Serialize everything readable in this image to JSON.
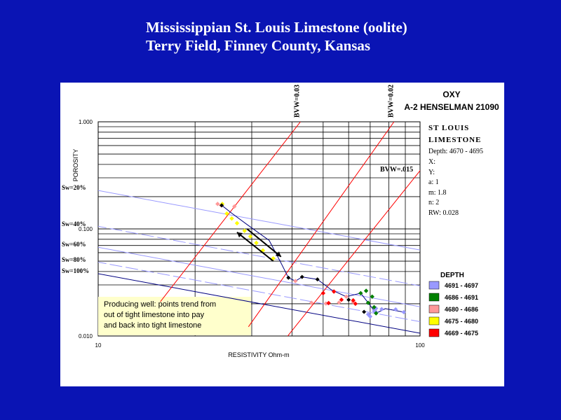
{
  "title": {
    "line1": "Mississippian St. Louis Limestone (oolite)",
    "line2": "Terry Field, Finney County, Kansas"
  },
  "well": {
    "operator": "OXY",
    "name": "A-2 HENSELMAN 21090",
    "formation_line1": "ST LOUIS",
    "formation_line2": "LIMESTONE",
    "depth": "Depth: 4670 - 4695",
    "x": "X:",
    "y": "Y:",
    "a": "a: 1",
    "m": "m: 1.8",
    "n": "n: 2",
    "rw": "RW: 0.028"
  },
  "note": {
    "line1": "Producing well: points trend from",
    "line2": "out of tight limestone into pay",
    "line3": "and back into tight limestone"
  },
  "colors": {
    "background": "#0a14b4",
    "panel": "#ffffff",
    "bvw_lines": "#ff0000",
    "sw_lines": "#9999ff",
    "sw100_line": "#000080",
    "trend_line": "#000080",
    "note_box": "#ffffcc"
  },
  "chart_data": {
    "type": "scatter",
    "x_scale": "log",
    "y_scale": "log",
    "xlim": [
      10,
      100
    ],
    "ylim": [
      0.01,
      1
    ],
    "xlabel": "RESISTIVITY Ohm-m",
    "ylabel": "POROSITY",
    "x_ticks": [
      "10",
      "100"
    ],
    "y_ticks": [
      "0.010",
      "0.100",
      "1.000"
    ],
    "sw_labels": [
      "Sw=20%",
      "Sw=40%",
      "Sw=60%",
      "Sw=80%",
      "Sw=100%"
    ],
    "sw_values": [
      0.2,
      0.4,
      0.6,
      0.8,
      1.0
    ],
    "bvw_lines": [
      {
        "label": "BVW=0.03",
        "value": 0.03
      },
      {
        "label": "BVW=0.02",
        "value": 0.02
      },
      {
        "label": "BVW=.015",
        "value": 0.015
      }
    ],
    "legend_title": "DEPTH",
    "series": [
      {
        "name": "4691 - 4697",
        "color": "#9999ff",
        "points": [
          [
            73,
            0.0181
          ],
          [
            72,
            0.0171
          ],
          [
            70,
            0.0152
          ],
          [
            69,
            0.0159
          ],
          [
            73,
            0.0167
          ],
          [
            76,
            0.0178
          ],
          [
            84,
            0.0177
          ],
          [
            89,
            0.0167
          ]
        ]
      },
      {
        "name": "4686 - 4691",
        "color": "#008000",
        "points": [
          [
            65.4,
            0.0251
          ],
          [
            68,
            0.0264
          ],
          [
            71,
            0.0233
          ],
          [
            69,
            0.0204
          ],
          [
            72,
            0.0186
          ],
          [
            73,
            0.0163
          ]
        ]
      },
      {
        "name": "4680 - 4686",
        "color": "#ff9999",
        "points": [
          [
            23.5,
            0.171
          ],
          [
            24.1,
            0.166
          ],
          [
            26.5,
            0.162
          ],
          [
            41,
            0.0326
          ],
          [
            46,
            0.0204
          ],
          [
            51,
            0.0201
          ],
          [
            56,
            0.0205
          ],
          [
            59,
            0.0233
          ],
          [
            62,
            0.0207
          ]
        ]
      },
      {
        "name": "4675 - 4680",
        "color": "#ffff00",
        "points": [
          [
            24.3,
            0.171
          ],
          [
            25.1,
            0.139
          ],
          [
            26,
            0.125
          ],
          [
            27,
            0.113
          ],
          [
            28.5,
            0.096
          ],
          [
            29.7,
            0.085
          ],
          [
            31,
            0.074
          ],
          [
            32.5,
            0.063
          ],
          [
            35,
            0.053
          ]
        ]
      },
      {
        "name": "4669 - 4675",
        "color": "#ff0000",
        "points": [
          [
            54,
            0.026
          ],
          [
            57,
            0.0218
          ],
          [
            62,
            0.0215
          ],
          [
            63,
            0.02
          ],
          [
            50,
            0.0251
          ],
          [
            52,
            0.0203
          ]
        ]
      }
    ],
    "black_points": [
      [
        24.2,
        0.166
      ],
      [
        39,
        0.035
      ],
      [
        43,
        0.0356
      ],
      [
        48,
        0.0338
      ],
      [
        60,
        0.0218
      ],
      [
        67,
        0.0168
      ]
    ],
    "trend_line": [
      [
        24.2,
        0.166
      ],
      [
        26,
        0.14
      ],
      [
        29,
        0.11
      ],
      [
        34,
        0.078
      ],
      [
        37,
        0.048
      ],
      [
        39,
        0.035
      ],
      [
        41,
        0.0326
      ],
      [
        43,
        0.0356
      ],
      [
        48,
        0.0338
      ],
      [
        53,
        0.027
      ],
      [
        59,
        0.0233
      ],
      [
        65.4,
        0.0251
      ],
      [
        69,
        0.0204
      ],
      [
        73,
        0.0163
      ],
      [
        78,
        0.018
      ],
      [
        89,
        0.0167
      ]
    ],
    "arrows": [
      {
        "direction": "up",
        "from": [
          35,
          0.05
        ],
        "to": [
          27,
          0.093
        ]
      },
      {
        "direction": "down",
        "from": [
          29,
          0.1
        ],
        "to": [
          37,
          0.055
        ]
      }
    ]
  }
}
